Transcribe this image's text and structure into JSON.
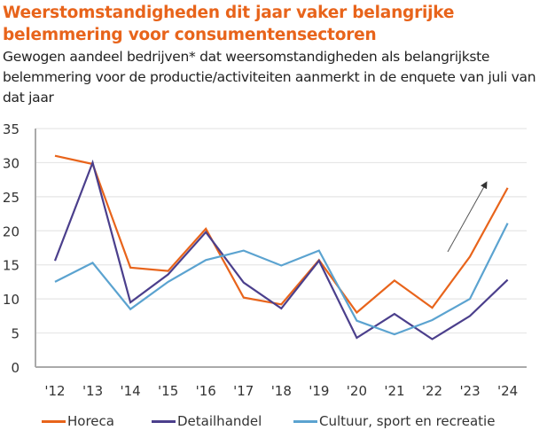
{
  "title": "Weerstomstandigheden dit jaar vaker belangrijke belemmering voor consumentensectoren",
  "subtitle": "Gewogen aandeel bedrijven* dat weersomstandigheden als belangrijkste belemmering voor de productie/activiteiten aanmerkt in de enquete van juli van dat jaar",
  "chart_data": {
    "type": "line",
    "title": "Weerstomstandigheden dit jaar vaker belangrijke belemmering voor consumentensectoren",
    "subtitle": "Gewogen aandeel bedrijven* dat weersomstandigheden als belangrijkste belemmering voor de productie/activiteiten aanmerkt in de enquete van juli van dat jaar",
    "xlabel": "",
    "ylabel": "",
    "x": [
      "'12",
      "'13",
      "'14",
      "'15",
      "'16",
      "'17",
      "'18",
      "'19",
      "'20",
      "'21",
      "'22",
      "'23",
      "'24"
    ],
    "ylim": [
      0,
      35
    ],
    "yticks": [
      "0",
      "5",
      "10",
      "15",
      "20",
      "25",
      "30",
      "35"
    ],
    "grid": true,
    "legend_position": "bottom",
    "annotation": "upward-arrow",
    "series": [
      {
        "name": "Horeca",
        "color": "#e8641b",
        "values": [
          31.0,
          29.8,
          14.6,
          14.1,
          20.3,
          10.2,
          9.2,
          15.7,
          8.0,
          12.7,
          8.7,
          16.2,
          26.3
        ]
      },
      {
        "name": "Detailhandel",
        "color": "#4b3f8c",
        "values": [
          15.6,
          30.0,
          9.5,
          13.6,
          19.8,
          12.4,
          8.6,
          15.6,
          4.3,
          7.8,
          4.1,
          7.5,
          12.8
        ]
      },
      {
        "name": "Cultuur, sport en recreatie",
        "color": "#5ba3d0",
        "values": [
          12.5,
          15.3,
          8.5,
          12.5,
          15.7,
          17.1,
          14.9,
          17.1,
          6.8,
          4.8,
          6.9,
          10.0,
          21.1
        ]
      }
    ]
  }
}
